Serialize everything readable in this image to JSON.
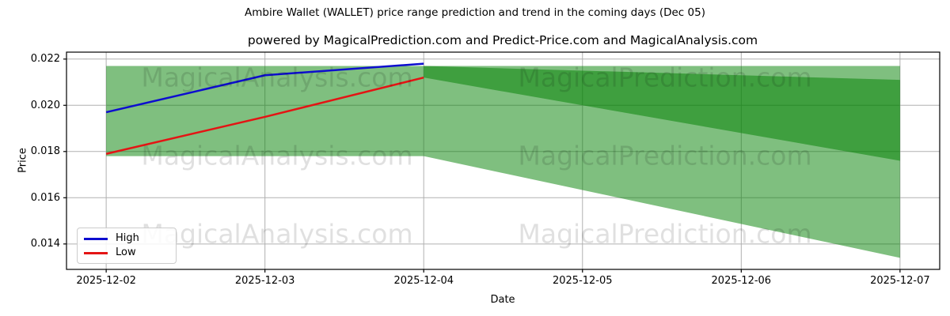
{
  "suptitle": "Ambire Wallet (WALLET) price range prediction and trend in the coming days (Dec 05)",
  "axes_title": "powered by MagicalPrediction.com and Predict-Price.com and MagicalAnalysis.com",
  "watermarks": {
    "left_text": "MagicalAnalysis.com",
    "right_text": "MagicalPrediction.com",
    "color": "rgba(0,0,0,0.12)"
  },
  "legend": {
    "items": [
      {
        "label": "High",
        "color": "#0d0dcf"
      },
      {
        "label": "Low",
        "color": "#e41414"
      }
    ]
  },
  "chart_data": {
    "type": "line",
    "suptitle": "Ambire Wallet (WALLET) price range prediction and trend in the coming days (Dec 05)",
    "title": "powered by MagicalPrediction.com and Predict-Price.com and MagicalAnalysis.com",
    "xlabel": "Date",
    "ylabel": "Price",
    "x_ticklabels": [
      "2025-12-02",
      "2025-12-03",
      "2025-12-04",
      "2025-12-05",
      "2025-12-06",
      "2025-12-07"
    ],
    "ytick_values": [
      0.014,
      0.016,
      0.018,
      0.02,
      0.022
    ],
    "ylim": [
      0.0129,
      0.0223
    ],
    "xlim": [
      -0.25,
      5.25
    ],
    "grid": true,
    "legend_position": "lower left",
    "colors": {
      "grid": "#b0b0b0",
      "spine": "#000000",
      "fill": "#008000",
      "fill_alpha": 0.5
    },
    "series": [
      {
        "name": "High",
        "color": "#0d0dcf",
        "x": [
          0,
          1,
          2
        ],
        "y": [
          0.0197,
          0.0213,
          0.0218
        ]
      },
      {
        "name": "Low",
        "color": "#e41414",
        "x": [
          0,
          1,
          2
        ],
        "y": [
          0.0179,
          0.0195,
          0.0212
        ]
      }
    ],
    "bands": [
      {
        "name": "history-range",
        "x": [
          0,
          2
        ],
        "upper": [
          0.0217,
          0.0217
        ],
        "lower": [
          0.0178,
          0.0178
        ]
      },
      {
        "name": "forecast-range",
        "x": [
          2,
          5
        ],
        "upper": [
          0.0217,
          0.0217
        ],
        "lower": [
          0.0178,
          0.0134
        ]
      },
      {
        "name": "forecast-trend",
        "x": [
          2,
          5
        ],
        "upper": [
          0.0217,
          0.0211
        ],
        "lower": [
          0.0212,
          0.0176
        ]
      }
    ]
  }
}
